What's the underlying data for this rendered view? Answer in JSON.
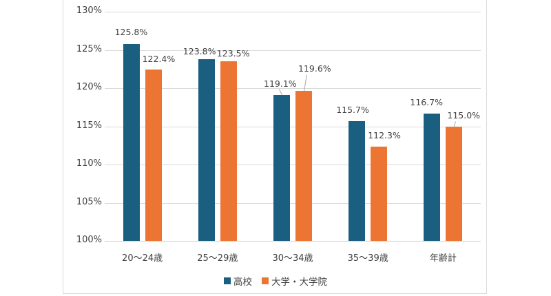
{
  "chart_data": {
    "type": "bar",
    "title": "",
    "xlabel": "",
    "ylabel": "",
    "categories": [
      "20～24歳",
      "25～29歳",
      "30～34歳",
      "35～39歳",
      "年齢計"
    ],
    "series": [
      {
        "name": "高校",
        "color": "#1a5f80",
        "values": [
          125.8,
          123.8,
          119.1,
          115.7,
          116.7
        ],
        "labels": [
          "125.8%",
          "123.8%",
          "119.1%",
          "115.7%",
          "116.7%"
        ]
      },
      {
        "name": "大学・大学院",
        "color": "#ed7534",
        "values": [
          122.4,
          123.5,
          119.6,
          112.3,
          115.0
        ],
        "labels": [
          "122.4%",
          "123.5%",
          "119.6%",
          "112.3%",
          "115.0%"
        ]
      }
    ],
    "ylim": [
      100,
      130
    ],
    "yticks": [
      "130%",
      "125%",
      "120%",
      "115%",
      "110%",
      "105%",
      "100%"
    ],
    "grid": true,
    "legend_position": "bottom"
  }
}
